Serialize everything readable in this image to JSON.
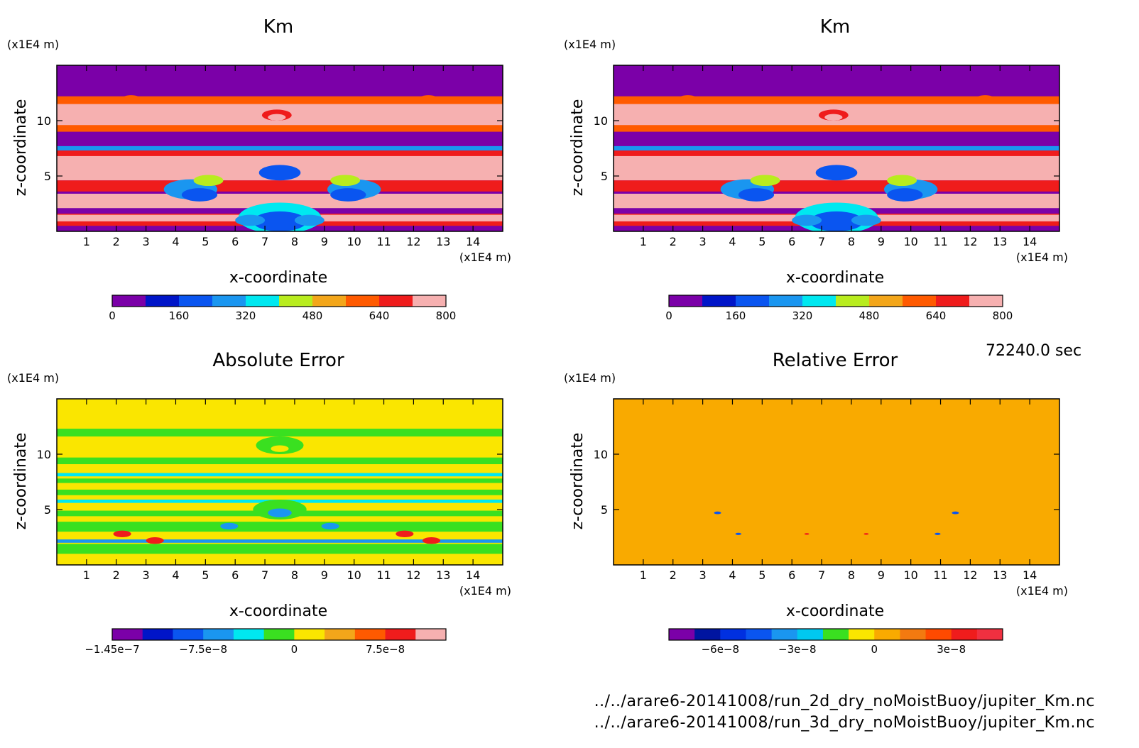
{
  "figure": {
    "time_label": "72240.0 sec",
    "file_paths": [
      "../../arare6-20141008/run_2d_dry_noMoistBuoy/jupiter_Km.nc",
      "../../arare6-20141008/run_3d_dry_noMoistBuoy/jupiter_Km.nc"
    ]
  },
  "chart_data": [
    {
      "id": "km_2d",
      "type": "heatmap",
      "title": "Km",
      "xlabel": "x-coordinate",
      "ylabel": "z-coordinate",
      "x_unit": "(x1E4 m)",
      "y_unit": "(x1E4 m)",
      "xlim": [
        0,
        15
      ],
      "ylim": [
        0,
        15
      ],
      "x_ticks": [
        1,
        2,
        3,
        4,
        5,
        6,
        7,
        8,
        9,
        10,
        11,
        12,
        13,
        14
      ],
      "y_ticks": [
        5,
        10
      ],
      "background": "#7b00a8",
      "colorbar": {
        "levels": [
          0,
          80,
          160,
          240,
          320,
          400,
          480,
          560,
          640,
          720,
          800
        ],
        "colors": [
          "#7b00a8",
          "#0015c8",
          "#0a55f0",
          "#1a96f0",
          "#00e8f0",
          "#b8ec1e",
          "#f3a61a",
          "#ff5a00",
          "#ef1c1c",
          "#f6b0b0"
        ],
        "tick_labels": [
          "0",
          "160",
          "320",
          "480",
          "640",
          "800"
        ]
      },
      "bands": [
        {
          "y": [
            12.2,
            11.4
          ],
          "value": 560
        },
        {
          "y": [
            11.5,
            11.0
          ],
          "value": 720
        },
        {
          "y": [
            11.2,
            9.3
          ],
          "value": 800
        },
        {
          "y": [
            9.6,
            9.0
          ],
          "value": 560
        },
        {
          "y": [
            7.7,
            7.3
          ],
          "value": 240
        },
        {
          "y": [
            7.3,
            6.3
          ],
          "value": 640
        },
        {
          "y": [
            6.8,
            4.6
          ],
          "value": 800
        },
        {
          "y": [
            4.6,
            3.6
          ],
          "value": 640
        },
        {
          "y": [
            3.4,
            2.1
          ],
          "value": 800
        },
        {
          "y": [
            1.6,
            0.5
          ],
          "value": 640
        },
        {
          "y": [
            1.5,
            0.9
          ],
          "value": 800
        }
      ],
      "blobs": [
        {
          "x": 7.4,
          "y": 10.5,
          "r": 0.5,
          "value": 640
        },
        {
          "x": 7.4,
          "y": 10.3,
          "r": 0.3,
          "value": 800
        },
        {
          "x": 4.5,
          "y": 3.8,
          "r": 0.9,
          "value": 240
        },
        {
          "x": 4.8,
          "y": 3.3,
          "r": 0.6,
          "value": 160
        },
        {
          "x": 10.0,
          "y": 3.8,
          "r": 0.9,
          "value": 240
        },
        {
          "x": 9.8,
          "y": 3.3,
          "r": 0.6,
          "value": 160
        },
        {
          "x": 5.1,
          "y": 4.6,
          "r": 0.5,
          "value": 400
        },
        {
          "x": 9.7,
          "y": 4.6,
          "r": 0.5,
          "value": 400
        },
        {
          "x": 7.5,
          "y": 5.3,
          "r": 0.7,
          "value": 160
        },
        {
          "x": 7.5,
          "y": 1.2,
          "r": 1.4,
          "value": 320
        },
        {
          "x": 7.5,
          "y": 0.9,
          "r": 0.9,
          "value": 160
        },
        {
          "x": 6.5,
          "y": 1.0,
          "r": 0.5,
          "value": 240
        },
        {
          "x": 8.5,
          "y": 1.0,
          "r": 0.5,
          "value": 240
        },
        {
          "x": 2.5,
          "y": 12.0,
          "r": 0.3,
          "value": 560
        },
        {
          "x": 12.5,
          "y": 12.0,
          "r": 0.3,
          "value": 560
        }
      ]
    },
    {
      "id": "km_3d",
      "type": "heatmap",
      "title": "Km",
      "xlabel": "x-coordinate",
      "ylabel": "z-coordinate",
      "x_unit": "(x1E4 m)",
      "y_unit": "(x1E4 m)",
      "xlim": [
        0,
        15
      ],
      "ylim": [
        0,
        15
      ],
      "x_ticks": [
        1,
        2,
        3,
        4,
        5,
        6,
        7,
        8,
        9,
        10,
        11,
        12,
        13,
        14
      ],
      "y_ticks": [
        5,
        10
      ],
      "background": "#7b00a8",
      "colorbar": {
        "levels": [
          0,
          80,
          160,
          240,
          320,
          400,
          480,
          560,
          640,
          720,
          800
        ],
        "colors": [
          "#7b00a8",
          "#0015c8",
          "#0a55f0",
          "#1a96f0",
          "#00e8f0",
          "#b8ec1e",
          "#f3a61a",
          "#ff5a00",
          "#ef1c1c",
          "#f6b0b0"
        ],
        "tick_labels": [
          "0",
          "160",
          "320",
          "480",
          "640",
          "800"
        ]
      },
      "bands": [
        {
          "y": [
            12.2,
            11.4
          ],
          "value": 560
        },
        {
          "y": [
            11.5,
            11.0
          ],
          "value": 720
        },
        {
          "y": [
            11.2,
            9.3
          ],
          "value": 800
        },
        {
          "y": [
            9.6,
            9.0
          ],
          "value": 560
        },
        {
          "y": [
            7.7,
            7.3
          ],
          "value": 240
        },
        {
          "y": [
            7.3,
            6.3
          ],
          "value": 640
        },
        {
          "y": [
            6.8,
            4.6
          ],
          "value": 800
        },
        {
          "y": [
            4.6,
            3.6
          ],
          "value": 640
        },
        {
          "y": [
            3.4,
            2.1
          ],
          "value": 800
        },
        {
          "y": [
            1.6,
            0.5
          ],
          "value": 640
        },
        {
          "y": [
            1.5,
            0.9
          ],
          "value": 800
        }
      ],
      "blobs": [
        {
          "x": 7.4,
          "y": 10.5,
          "r": 0.5,
          "value": 640
        },
        {
          "x": 7.4,
          "y": 10.3,
          "r": 0.3,
          "value": 800
        },
        {
          "x": 4.5,
          "y": 3.8,
          "r": 0.9,
          "value": 240
        },
        {
          "x": 4.8,
          "y": 3.3,
          "r": 0.6,
          "value": 160
        },
        {
          "x": 10.0,
          "y": 3.8,
          "r": 0.9,
          "value": 240
        },
        {
          "x": 9.8,
          "y": 3.3,
          "r": 0.6,
          "value": 160
        },
        {
          "x": 5.1,
          "y": 4.6,
          "r": 0.5,
          "value": 400
        },
        {
          "x": 9.7,
          "y": 4.6,
          "r": 0.5,
          "value": 400
        },
        {
          "x": 7.5,
          "y": 5.3,
          "r": 0.7,
          "value": 160
        },
        {
          "x": 7.5,
          "y": 1.2,
          "r": 1.4,
          "value": 320
        },
        {
          "x": 7.5,
          "y": 0.9,
          "r": 0.9,
          "value": 160
        },
        {
          "x": 6.5,
          "y": 1.0,
          "r": 0.5,
          "value": 240
        },
        {
          "x": 8.5,
          "y": 1.0,
          "r": 0.5,
          "value": 240
        },
        {
          "x": 2.5,
          "y": 12.0,
          "r": 0.3,
          "value": 560
        },
        {
          "x": 12.5,
          "y": 12.0,
          "r": 0.3,
          "value": 560
        }
      ]
    },
    {
      "id": "absolute_error",
      "type": "heatmap",
      "title": "Absolute Error",
      "xlabel": "x-coordinate",
      "ylabel": "z-coordinate",
      "x_unit": "(x1E4 m)",
      "y_unit": "(x1E4 m)",
      "xlim": [
        0,
        15
      ],
      "ylim": [
        0,
        15
      ],
      "x_ticks": [
        1,
        2,
        3,
        4,
        5,
        6,
        7,
        8,
        9,
        10,
        11,
        12,
        13,
        14
      ],
      "y_ticks": [
        5,
        10
      ],
      "background": "#fae600",
      "colorbar": {
        "levels": [
          -1.45e-07,
          -1.2e-07,
          -1e-07,
          -7.5e-08,
          -5e-08,
          -2.5e-08,
          0,
          2.5e-08,
          5e-08,
          7.5e-08,
          1e-07,
          1.2e-07
        ],
        "colors": [
          "#7b00a8",
          "#0015c8",
          "#0a55f0",
          "#1a96f0",
          "#00e8f0",
          "#3ae020",
          "#fae600",
          "#f3a61a",
          "#ff5a00",
          "#ef1c1c",
          "#f6b0b0"
        ],
        "tick_labels": [
          "-1.45e-7",
          "-7.5e-8",
          "0",
          "7.5e-8"
        ]
      },
      "bands": [
        {
          "y": [
            12.3,
            11.6
          ],
          "value": -2.5e-08
        },
        {
          "y": [
            9.7,
            9.1
          ],
          "value": -2.5e-08
        },
        {
          "y": [
            8.3,
            8.0
          ],
          "value": -5e-08
        },
        {
          "y": [
            7.8,
            7.4
          ],
          "value": -2.5e-08
        },
        {
          "y": [
            6.8,
            6.3
          ],
          "value": -2.5e-08
        },
        {
          "y": [
            5.9,
            5.6
          ],
          "value": -5e-08
        },
        {
          "y": [
            4.9,
            4.4
          ],
          "value": -2.5e-08
        },
        {
          "y": [
            3.9,
            3.0
          ],
          "value": -2.5e-08
        },
        {
          "y": [
            2.3,
            2.0
          ],
          "value": -7.5e-08
        },
        {
          "y": [
            1.9,
            1.0
          ],
          "value": -2.5e-08
        }
      ],
      "blobs": [
        {
          "x": 7.5,
          "y": 10.8,
          "r": 0.8,
          "value": -2.5e-08
        },
        {
          "x": 7.5,
          "y": 10.5,
          "r": 0.3,
          "value": 0
        },
        {
          "x": 7.5,
          "y": 5.0,
          "r": 0.9,
          "value": -2.5e-08
        },
        {
          "x": 7.5,
          "y": 4.7,
          "r": 0.4,
          "value": -7.5e-08
        },
        {
          "x": 2.2,
          "y": 2.8,
          "r": 0.3,
          "value": 7.5e-08
        },
        {
          "x": 3.3,
          "y": 2.2,
          "r": 0.3,
          "value": 7.5e-08
        },
        {
          "x": 11.7,
          "y": 2.8,
          "r": 0.3,
          "value": 7.5e-08
        },
        {
          "x": 12.6,
          "y": 2.2,
          "r": 0.3,
          "value": 7.5e-08
        },
        {
          "x": 5.8,
          "y": 3.5,
          "r": 0.3,
          "value": -7.5e-08
        },
        {
          "x": 9.2,
          "y": 3.5,
          "r": 0.3,
          "value": -7.5e-08
        }
      ]
    },
    {
      "id": "relative_error",
      "type": "heatmap",
      "title": "Relative Error",
      "xlabel": "x-coordinate",
      "ylabel": "z-coordinate",
      "x_unit": "(x1E4 m)",
      "y_unit": "(x1E4 m)",
      "xlim": [
        0,
        15
      ],
      "ylim": [
        0,
        15
      ],
      "x_ticks": [
        1,
        2,
        3,
        4,
        5,
        6,
        7,
        8,
        9,
        10,
        11,
        12,
        13,
        14
      ],
      "y_ticks": [
        5,
        10
      ],
      "background": "#f9aa00",
      "colorbar": {
        "levels": [
          -8e-08,
          -7e-08,
          -6e-08,
          -5e-08,
          -4e-08,
          -3e-08,
          -2e-08,
          -1e-08,
          0,
          1e-08,
          2e-08,
          3e-08,
          4e-08,
          5e-08
        ],
        "colors": [
          "#7b00a8",
          "#0015a0",
          "#0030e0",
          "#0a55f0",
          "#1a96f0",
          "#00c8f0",
          "#3ae020",
          "#fae600",
          "#f9aa00",
          "#f37a10",
          "#ff4a00",
          "#ef1c1c",
          "#f03040"
        ],
        "tick_labels": [
          "-6e-8",
          "-3e-8",
          "0",
          "3e-8"
        ]
      },
      "bands": [
        {
          "y": [
            12.3,
            11.6
          ],
          "value": 0
        },
        {
          "y": [
            9.7,
            9.1
          ],
          "value": 0
        },
        {
          "y": [
            8.0,
            7.5
          ],
          "value": 0
        },
        {
          "y": [
            6.8,
            6.3
          ],
          "value": 0
        },
        {
          "y": [
            5.5,
            5.1
          ],
          "value": 0
        },
        {
          "y": [
            4.4,
            3.9
          ],
          "value": 0
        },
        {
          "y": [
            3.2,
            2.7
          ],
          "value": 0
        },
        {
          "y": [
            1.7,
            1.0
          ],
          "value": 0
        }
      ],
      "blobs": [
        {
          "x": 7.5,
          "y": 10.7,
          "r": 0.8,
          "value": 0
        },
        {
          "x": 7.5,
          "y": 5.0,
          "r": 1.0,
          "value": 0
        },
        {
          "x": 3.5,
          "y": 4.7,
          "r": 0.12,
          "value": -5e-08
        },
        {
          "x": 11.5,
          "y": 4.7,
          "r": 0.12,
          "value": -5e-08
        },
        {
          "x": 4.2,
          "y": 2.8,
          "r": 0.1,
          "value": -5e-08
        },
        {
          "x": 10.9,
          "y": 2.8,
          "r": 0.1,
          "value": -5e-08
        },
        {
          "x": 6.5,
          "y": 2.8,
          "r": 0.08,
          "value": 3e-08
        },
        {
          "x": 8.5,
          "y": 2.8,
          "r": 0.08,
          "value": 3e-08
        }
      ]
    }
  ]
}
